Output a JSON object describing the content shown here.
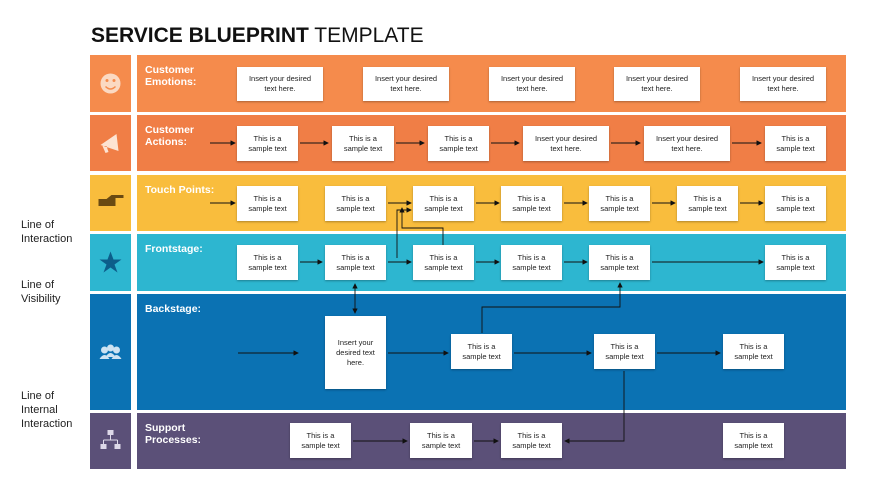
{
  "title": {
    "bold": "SERVICE BLUEPRINT",
    "regular": "TEMPLATE"
  },
  "side_labels": [
    "Line of\nInteraction",
    "Line of\nVisibility",
    "Line of\nInternal\nInteraction"
  ],
  "lanes": [
    {
      "label": "Customer\nEmotions:",
      "boxes": [
        "Insert your desired\ntext here.",
        "Insert your desired\ntext here.",
        "Insert your desired\ntext here.",
        "Insert your desired\ntext here.",
        "Insert your desired\ntext here."
      ]
    },
    {
      "label": "Customer\nActions:",
      "boxes": [
        "This is a\nsample text",
        "This is a\nsample text",
        "This is a\nsample text",
        "Insert your desired\ntext here.",
        "Insert your desired\ntext here.",
        "This is a\nsample text"
      ]
    },
    {
      "label": "Touch Points:",
      "boxes": [
        "This is a\nsample text",
        "This is a\nsample text",
        "This is a\nsample text",
        "This is a\nsample text",
        "This is a\nsample text",
        "This is a\nsample text",
        "This is a\nsample text"
      ]
    },
    {
      "label": "Frontstage:",
      "boxes": [
        "This is a\nsample text",
        "This is a\nsample text",
        "This is a\nsample text",
        "This is a\nsample text",
        "This is a\nsample text",
        "This is a\nsample text"
      ]
    },
    {
      "label": "Backstage:",
      "boxes": [
        "Insert your\ndesired text\nhere.",
        "This is a\nsample text",
        "This is a\nsample text",
        "This is a\nsample text"
      ]
    },
    {
      "label": "Support\nProcesses:",
      "boxes": [
        "This is a\nsample text",
        "This is a\nsample text",
        "This is a\nsample text",
        "This is a\nsample text"
      ]
    }
  ]
}
